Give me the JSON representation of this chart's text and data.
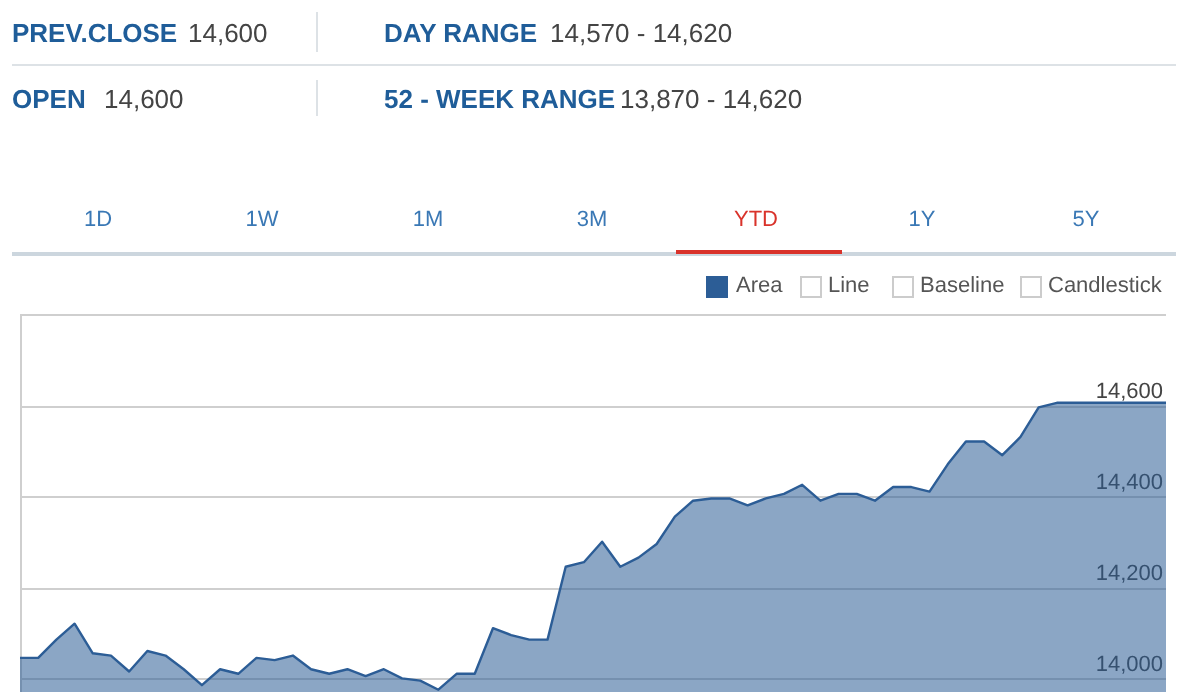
{
  "chart_data": {
    "type": "area",
    "categories": [
      null,
      null,
      null,
      null,
      null,
      null,
      null,
      null,
      null,
      null,
      null,
      null,
      null,
      null,
      null,
      null,
      null,
      null,
      null,
      null,
      null,
      null,
      null,
      null,
      null,
      null,
      null,
      null,
      null,
      null,
      null,
      null,
      null,
      null,
      null,
      null,
      null,
      null,
      null,
      null,
      null,
      null,
      null,
      null,
      null,
      null,
      null,
      null,
      null,
      null,
      null,
      null,
      null,
      null,
      null,
      null,
      null,
      null,
      null,
      null,
      null,
      null,
      null,
      null
    ],
    "series": [
      {
        "name": "Area",
        "color": "#2c5d96",
        "values": [
          14045,
          14045,
          14085,
          14120,
          14055,
          14050,
          14015,
          14060,
          14050,
          14020,
          13985,
          14020,
          14010,
          14045,
          14040,
          14050,
          14020,
          14010,
          14020,
          14005,
          14020,
          14000,
          13995,
          13975,
          14010,
          14010,
          14110,
          14095,
          14085,
          14085,
          14245,
          14255,
          14300,
          14245,
          14265,
          14295,
          14355,
          14390,
          14395,
          14395,
          14380,
          14395,
          14405,
          14425,
          14390,
          14405,
          14405,
          14390,
          14420,
          14420,
          14410,
          14470,
          14520,
          14520,
          14490,
          14530,
          14595,
          14605,
          14605,
          14605,
          14605,
          14605,
          14605,
          14605
        ]
      }
    ],
    "ylim": [
      13970,
      14800
    ],
    "yticks": [
      {
        "value": 14000,
        "label": "14,000"
      },
      {
        "value": 14200,
        "label": "14,200"
      },
      {
        "value": 14400,
        "label": "14,400"
      },
      {
        "value": 14600,
        "label": "14,600"
      },
      {
        "value": 14800,
        "label": null
      }
    ],
    "grid": "y",
    "legend": "top right",
    "tick_labels": "y",
    "annotations": [
      "PREV.CLOSE",
      "14,600",
      "DAY RANGE",
      "14,570 - 14,620",
      "OPEN",
      "14,600",
      "52 - WEEK RANGE",
      "13,870 - 14,620",
      "1D",
      "1W",
      "1M",
      "3M",
      "YTD",
      "1Y",
      "5Y",
      "Line",
      "Baseline",
      "Candlestick"
    ]
  }
}
